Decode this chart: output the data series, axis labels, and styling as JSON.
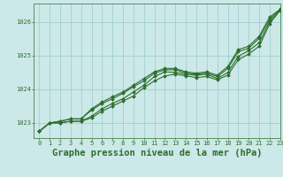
{
  "background_color": "#cce8e8",
  "grid_color": "#99cccc",
  "line_color": "#2d6e2d",
  "title": "Graphe pression niveau de la mer (hPa)",
  "xlim": [
    -0.5,
    23
  ],
  "ylim": [
    1022.55,
    1026.55
  ],
  "yticks": [
    1023,
    1024,
    1025,
    1026
  ],
  "xticks": [
    0,
    1,
    2,
    3,
    4,
    5,
    6,
    7,
    8,
    9,
    10,
    11,
    12,
    13,
    14,
    15,
    16,
    17,
    18,
    19,
    20,
    21,
    22,
    23
  ],
  "series": [
    [
      1022.75,
      1023.0,
      1023.0,
      1023.05,
      1023.05,
      1023.15,
      1023.35,
      1023.5,
      1023.65,
      1023.8,
      1024.05,
      1024.25,
      1024.4,
      1024.45,
      1024.4,
      1024.35,
      1024.38,
      1024.28,
      1024.42,
      1024.88,
      1025.05,
      1025.28,
      1025.95,
      1026.35
    ],
    [
      1022.75,
      1023.0,
      1023.0,
      1023.05,
      1023.05,
      1023.2,
      1023.42,
      1023.58,
      1023.72,
      1023.92,
      1024.12,
      1024.38,
      1024.52,
      1024.5,
      1024.45,
      1024.42,
      1024.45,
      1024.32,
      1024.5,
      1024.98,
      1025.15,
      1025.38,
      1026.02,
      1026.35
    ],
    [
      1022.75,
      1023.0,
      1023.05,
      1023.12,
      1023.12,
      1023.38,
      1023.58,
      1023.72,
      1023.88,
      1024.08,
      1024.25,
      1024.48,
      1024.58,
      1024.58,
      1024.48,
      1024.45,
      1024.48,
      1024.38,
      1024.62,
      1025.12,
      1025.22,
      1025.52,
      1026.08,
      1026.38
    ],
    [
      1022.75,
      1023.0,
      1023.05,
      1023.12,
      1023.12,
      1023.42,
      1023.62,
      1023.78,
      1023.92,
      1024.12,
      1024.32,
      1024.52,
      1024.62,
      1024.62,
      1024.52,
      1024.48,
      1024.52,
      1024.42,
      1024.68,
      1025.18,
      1025.28,
      1025.58,
      1026.15,
      1026.38
    ]
  ],
  "marker": "D",
  "markersize": 2.0,
  "linewidth": 0.8,
  "title_fontsize": 7.5,
  "tick_fontsize": 5.0,
  "title_color": "#2d6e2d",
  "tick_color": "#2d6e2d",
  "spine_color": "#2d6e2d"
}
